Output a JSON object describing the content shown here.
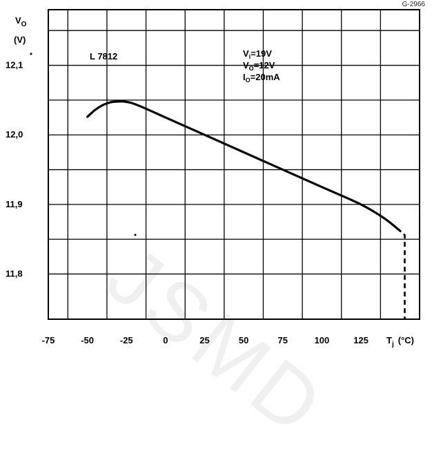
{
  "figure_id": "G-2966",
  "watermark": "JSMD",
  "chart_data": {
    "type": "line",
    "title": "",
    "ylabel_symbol": "V",
    "ylabel_sub": "O",
    "ylabel_unit": "(V)",
    "xlabel_symbol": "T",
    "xlabel_sub": "j",
    "xlabel_unit": "(°C)",
    "xlim": [
      -75,
      162.5
    ],
    "ylim": [
      11.735,
      12.18
    ],
    "x_ticks": [
      -75,
      -50,
      -25,
      0,
      25,
      50,
      75,
      100,
      125
    ],
    "x_tick_labels": [
      "-75",
      "-50",
      "-25",
      "0",
      "25",
      "50",
      "75",
      "100",
      "125"
    ],
    "y_ticks": [
      11.8,
      11.9,
      12.0,
      12.1
    ],
    "y_tick_labels": [
      "11,8",
      "11,9",
      "12,0",
      "12,1"
    ],
    "grid": true,
    "series": [
      {
        "name": "",
        "x": [
          -50,
          -45,
          -40,
          -35,
          -30,
          -27,
          -22,
          -15,
          0,
          25,
          50,
          75,
          100,
          125,
          140,
          150
        ],
        "y": [
          12.026,
          12.036,
          12.043,
          12.047,
          12.048,
          12.048,
          12.046,
          12.04,
          12.025,
          12.0,
          11.975,
          11.95,
          11.925,
          11.9,
          11.88,
          11.862
        ]
      }
    ],
    "extrapolation": {
      "x": [
        140,
        150,
        153,
        153
      ],
      "y": [
        11.88,
        11.862,
        11.856,
        11.735
      ]
    },
    "annotations": {
      "device": "L 7812",
      "conditions": [
        {
          "symbol": "V",
          "sub": "i",
          "rest": "=19V"
        },
        {
          "symbol": "V",
          "sub": "O",
          "rest": "=12V"
        },
        {
          "symbol": "I",
          "sub": "O",
          "rest": "=20mA"
        }
      ]
    }
  }
}
